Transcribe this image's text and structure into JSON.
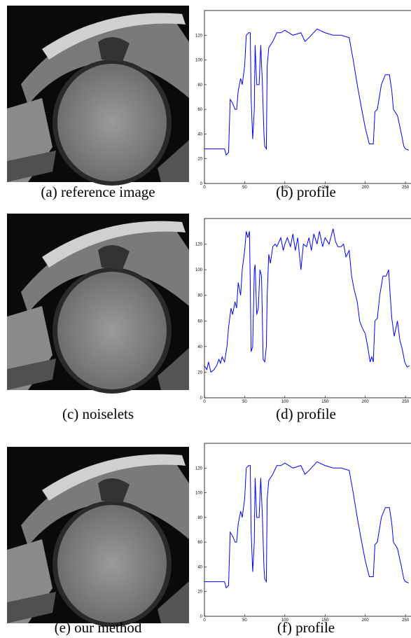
{
  "figure": {
    "captions": [
      "(a) reference image",
      "(b) profile",
      "(c) noiselets",
      "(d) profile",
      "(e) our method",
      "(f) profile"
    ]
  },
  "chart_data": [
    {
      "type": "line",
      "color": "#0000ff",
      "xlim": [
        0,
        256
      ],
      "ylim": [
        0,
        140
      ],
      "xticks": [
        0,
        50,
        100,
        150,
        200,
        250
      ],
      "yticks": [
        0,
        20,
        40,
        60,
        80,
        100,
        120
      ],
      "x": [
        0,
        20,
        25,
        27,
        30,
        32,
        35,
        38,
        40,
        42,
        45,
        47,
        50,
        52,
        55,
        57,
        58,
        60,
        62,
        63,
        65,
        68,
        70,
        72,
        74,
        75,
        77,
        78,
        80,
        85,
        90,
        95,
        100,
        110,
        120,
        125,
        130,
        140,
        150,
        160,
        170,
        180,
        185,
        190,
        195,
        200,
        205,
        210,
        212,
        215,
        220,
        225,
        230,
        233,
        235,
        240,
        245,
        248,
        250,
        254
      ],
      "values": [
        28,
        28,
        28,
        23,
        25,
        68,
        65,
        60,
        60,
        75,
        85,
        80,
        95,
        120,
        122,
        122,
        70,
        36,
        60,
        112,
        80,
        80,
        112,
        82,
        40,
        30,
        28,
        95,
        110,
        115,
        122,
        122,
        124,
        120,
        122,
        115,
        118,
        125,
        122,
        120,
        120,
        118,
        100,
        80,
        62,
        45,
        32,
        32,
        58,
        60,
        80,
        88,
        88,
        75,
        60,
        55,
        40,
        30,
        28,
        27
      ]
    },
    {
      "type": "line",
      "color": "#0000ff",
      "xlim": [
        0,
        256
      ],
      "ylim": [
        0,
        140
      ],
      "xticks": [
        0,
        50,
        100,
        150,
        200,
        250
      ],
      "yticks": [
        0,
        20,
        40,
        60,
        80,
        100,
        120
      ],
      "x": [
        0,
        3,
        5,
        8,
        12,
        15,
        18,
        20,
        22,
        25,
        28,
        30,
        33,
        35,
        38,
        40,
        42,
        45,
        47,
        50,
        52,
        54,
        56,
        57,
        58,
        60,
        62,
        63,
        65,
        67,
        69,
        71,
        73,
        75,
        77,
        78,
        80,
        82,
        85,
        88,
        90,
        95,
        98,
        100,
        103,
        107,
        110,
        113,
        116,
        120,
        123,
        127,
        130,
        133,
        136,
        140,
        143,
        147,
        150,
        155,
        160,
        163,
        166,
        170,
        173,
        176,
        180,
        183,
        186,
        190,
        193,
        196,
        200,
        203,
        206,
        208,
        210,
        212,
        215,
        218,
        222,
        226,
        229,
        231,
        233,
        236,
        240,
        243,
        246,
        249,
        252,
        255
      ],
      "values": [
        25,
        22,
        28,
        20,
        22,
        25,
        30,
        27,
        32,
        28,
        40,
        55,
        70,
        65,
        75,
        70,
        90,
        80,
        100,
        115,
        130,
        125,
        130,
        90,
        36,
        40,
        100,
        104,
        65,
        70,
        100,
        95,
        30,
        28,
        40,
        80,
        112,
        105,
        118,
        120,
        118,
        125,
        115,
        120,
        125,
        118,
        128,
        115,
        125,
        100,
        120,
        118,
        125,
        115,
        128,
        120,
        130,
        118,
        125,
        120,
        132,
        122,
        118,
        118,
        120,
        110,
        115,
        95,
        85,
        75,
        60,
        55,
        50,
        40,
        28,
        32,
        28,
        60,
        62,
        80,
        95,
        95,
        100,
        80,
        62,
        48,
        60,
        45,
        38,
        28,
        24,
        25
      ]
    },
    {
      "type": "line",
      "color": "#0000ff",
      "xlim": [
        0,
        256
      ],
      "ylim": [
        0,
        140
      ],
      "xticks": [
        0,
        50,
        100,
        150,
        200,
        250
      ],
      "yticks": [
        0,
        20,
        40,
        60,
        80,
        100,
        120
      ],
      "x": [
        0,
        20,
        25,
        27,
        30,
        32,
        35,
        38,
        40,
        42,
        45,
        47,
        50,
        52,
        55,
        57,
        58,
        60,
        62,
        63,
        65,
        68,
        70,
        72,
        74,
        75,
        77,
        78,
        80,
        85,
        90,
        95,
        100,
        110,
        120,
        125,
        130,
        140,
        150,
        160,
        170,
        180,
        185,
        190,
        195,
        200,
        205,
        210,
        212,
        215,
        220,
        225,
        230,
        233,
        235,
        240,
        245,
        248,
        250,
        254
      ],
      "values": [
        28,
        28,
        28,
        23,
        25,
        68,
        65,
        60,
        60,
        75,
        85,
        80,
        95,
        120,
        122,
        122,
        70,
        36,
        60,
        112,
        80,
        80,
        112,
        82,
        40,
        30,
        28,
        95,
        110,
        115,
        122,
        122,
        124,
        120,
        122,
        115,
        118,
        125,
        122,
        120,
        120,
        118,
        100,
        80,
        62,
        45,
        32,
        32,
        58,
        60,
        80,
        88,
        88,
        75,
        60,
        55,
        40,
        30,
        28,
        27
      ]
    }
  ]
}
